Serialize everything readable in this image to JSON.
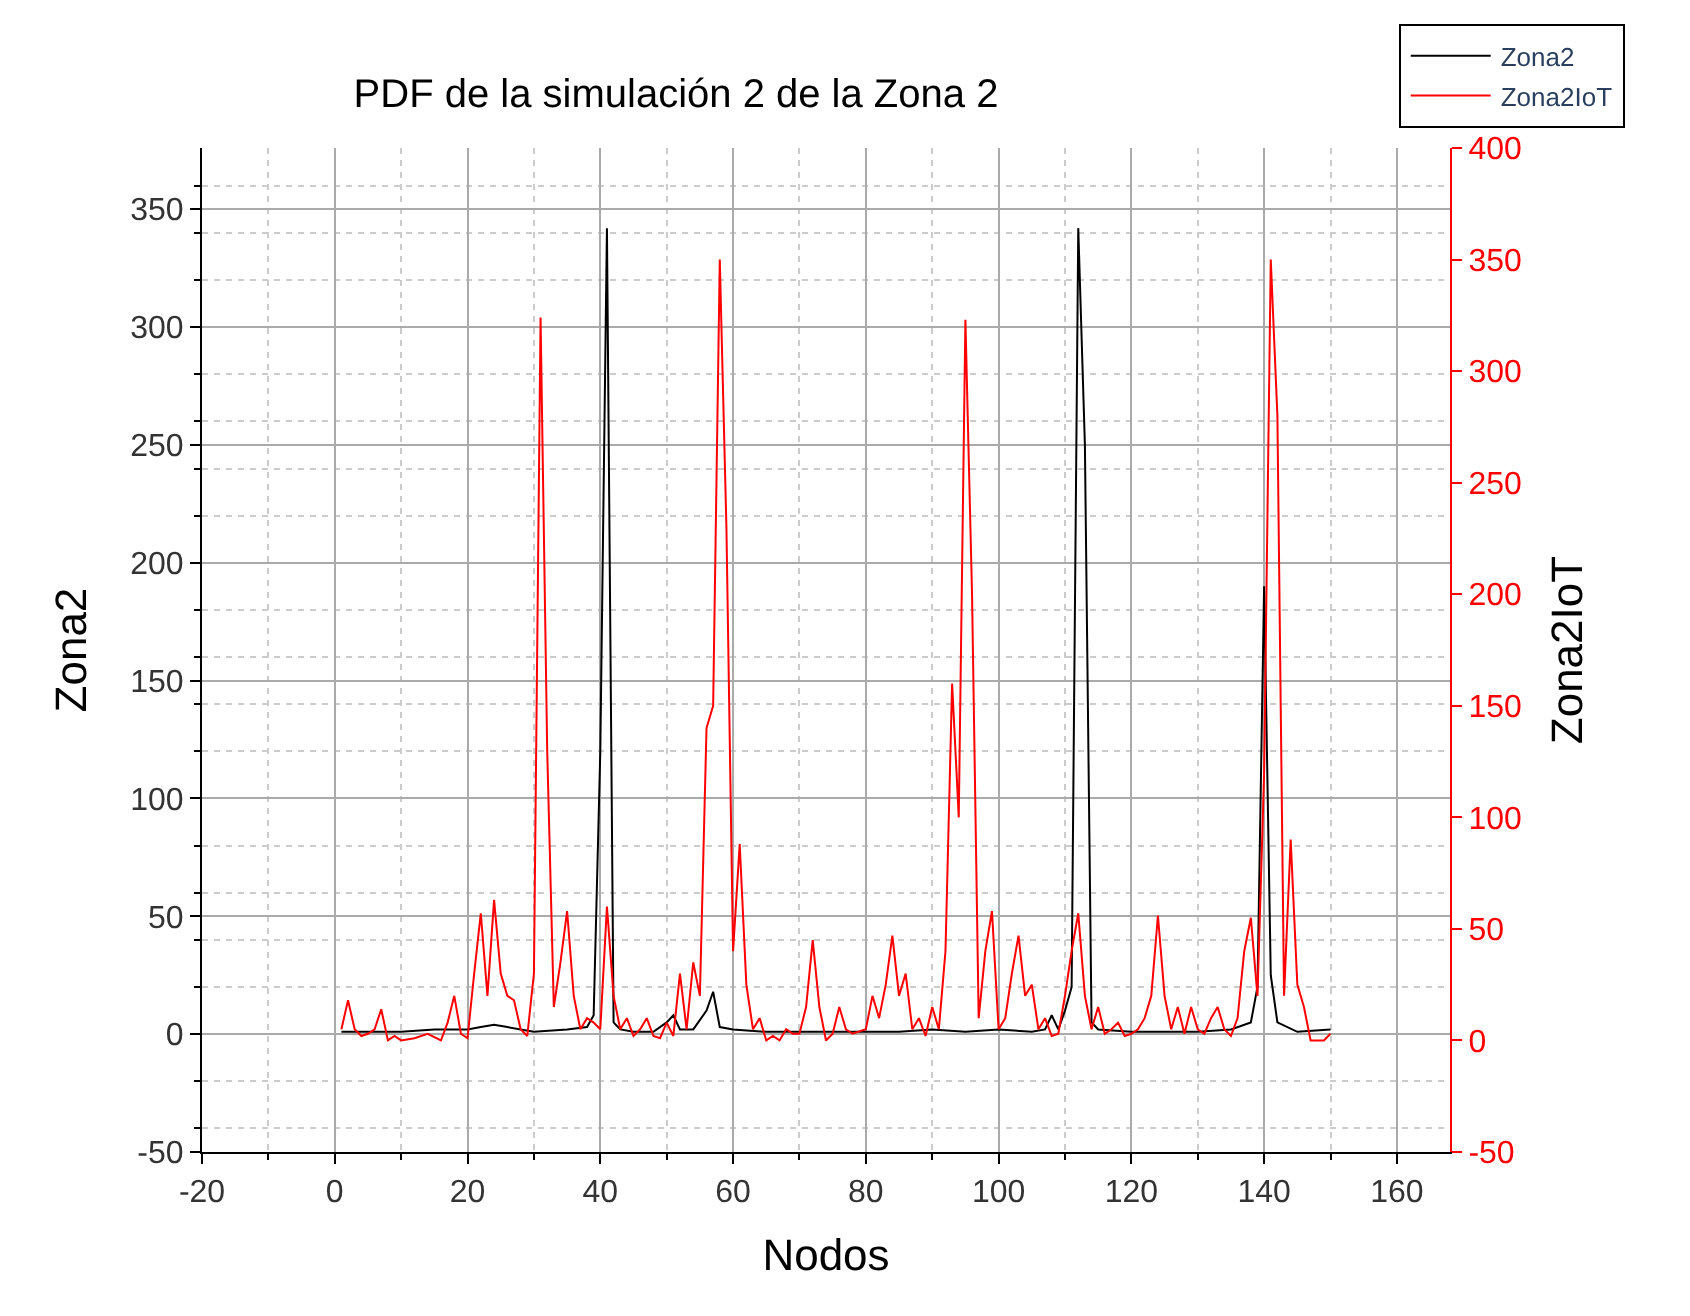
{
  "chart_data": {
    "type": "line",
    "title": "PDF de la simulación 2 de la Zona 2",
    "xlabel": "Nodos",
    "ylabel": "Zona2",
    "y2label": "Zona2IoT",
    "xlim": [
      -20,
      168
    ],
    "xticks": [
      -20,
      0,
      20,
      40,
      60,
      80,
      100,
      120,
      140,
      160
    ],
    "ylim": [
      -50,
      376
    ],
    "yticks": [
      -50,
      0,
      50,
      100,
      150,
      200,
      250,
      300,
      350
    ],
    "y2lim": [
      -50,
      400
    ],
    "y2ticks": [
      -50,
      0,
      50,
      100,
      150,
      200,
      250,
      300,
      350,
      400
    ],
    "grid": true,
    "legend": "top right",
    "line_style": "solid",
    "marker": "none",
    "series": [
      {
        "name": "Zona2",
        "color": "#000000",
        "x": [
          1,
          5,
          10,
          15,
          20,
          22,
          24,
          26,
          28,
          30,
          35,
          38,
          39,
          40,
          41,
          42,
          43,
          45,
          48,
          50,
          51,
          52,
          54,
          56,
          57,
          58,
          60,
          65,
          70,
          75,
          80,
          85,
          90,
          95,
          100,
          105,
          107,
          108,
          109,
          110,
          111,
          112,
          113,
          114,
          115,
          120,
          125,
          130,
          135,
          138,
          139,
          140,
          141,
          142,
          145,
          150
        ],
        "values": [
          1,
          1,
          1,
          2,
          2,
          3,
          4,
          3,
          2,
          1,
          2,
          3,
          8,
          120,
          342,
          5,
          2,
          1,
          1,
          5,
          8,
          2,
          2,
          10,
          18,
          3,
          2,
          1,
          1,
          1,
          1,
          1,
          2,
          1,
          2,
          1,
          2,
          8,
          2,
          10,
          20,
          342,
          250,
          5,
          2,
          1,
          1,
          1,
          2,
          5,
          20,
          190,
          25,
          5,
          1,
          2
        ]
      },
      {
        "name": "Zona2IoT",
        "color": "#ff0000",
        "axis": "y2",
        "x": [
          1,
          2,
          3,
          4,
          5,
          6,
          7,
          8,
          9,
          10,
          12,
          14,
          16,
          17,
          18,
          19,
          20,
          21,
          22,
          23,
          24,
          25,
          26,
          27,
          28,
          29,
          30,
          31,
          32,
          33,
          34,
          35,
          36,
          37,
          38,
          39,
          40,
          41,
          42,
          43,
          44,
          45,
          46,
          47,
          48,
          49,
          50,
          51,
          52,
          53,
          54,
          55,
          56,
          57,
          58,
          59,
          60,
          61,
          62,
          63,
          64,
          65,
          66,
          67,
          68,
          69,
          70,
          71,
          72,
          73,
          74,
          75,
          76,
          77,
          78,
          80,
          81,
          82,
          83,
          84,
          85,
          86,
          87,
          88,
          89,
          90,
          91,
          92,
          93,
          94,
          95,
          96,
          97,
          98,
          99,
          100,
          101,
          102,
          103,
          104,
          105,
          106,
          107,
          108,
          109,
          110,
          111,
          112,
          113,
          114,
          115,
          116,
          117,
          118,
          119,
          120,
          121,
          122,
          123,
          124,
          125,
          126,
          127,
          128,
          129,
          130,
          131,
          132,
          133,
          134,
          135,
          136,
          137,
          138,
          139,
          140,
          141,
          142,
          143,
          144,
          145,
          146,
          147,
          148,
          149,
          150
        ],
        "values": [
          5,
          18,
          5,
          2,
          3,
          5,
          14,
          0,
          2,
          0,
          1,
          3,
          0,
          8,
          20,
          3,
          1,
          30,
          57,
          20,
          63,
          30,
          20,
          18,
          5,
          2,
          30,
          324,
          130,
          15,
          35,
          58,
          20,
          5,
          10,
          8,
          5,
          60,
          20,
          5,
          10,
          2,
          5,
          10,
          2,
          1,
          8,
          2,
          30,
          5,
          35,
          20,
          140,
          150,
          350,
          230,
          40,
          88,
          25,
          5,
          10,
          0,
          2,
          0,
          5,
          3,
          3,
          15,
          45,
          15,
          0,
          3,
          15,
          5,
          3,
          5,
          20,
          10,
          25,
          47,
          20,
          30,
          5,
          10,
          2,
          15,
          5,
          40,
          160,
          100,
          323,
          200,
          10,
          40,
          58,
          5,
          10,
          30,
          47,
          20,
          25,
          5,
          10,
          2,
          3,
          20,
          40,
          57,
          20,
          5,
          15,
          3,
          5,
          8,
          2,
          3,
          5,
          10,
          20,
          56,
          20,
          5,
          15,
          3,
          15,
          5,
          3,
          10,
          15,
          5,
          2,
          10,
          40,
          55,
          20,
          120,
          350,
          280,
          20,
          90,
          25,
          15,
          0,
          0,
          0,
          3
        ]
      }
    ]
  }
}
